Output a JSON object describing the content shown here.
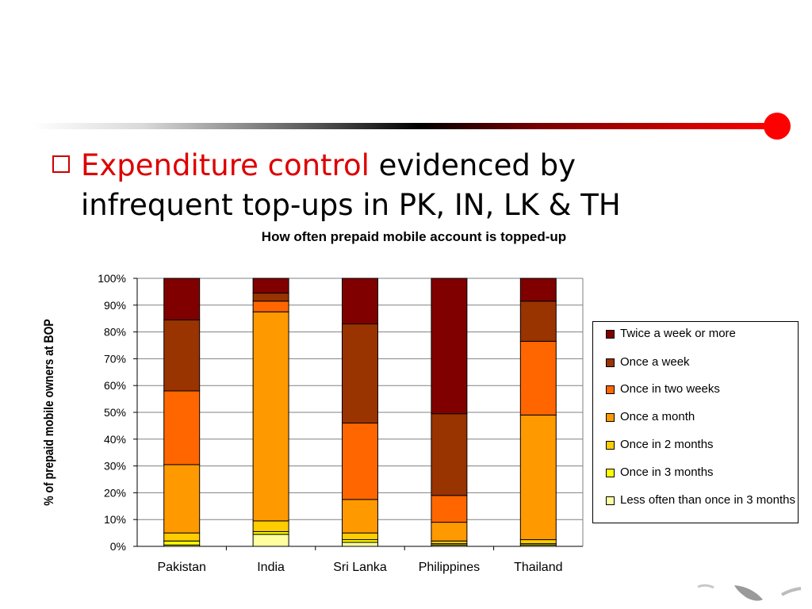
{
  "slide": {
    "bullet_highlight": "Expenditure control",
    "bullet_rest_line1": " evidenced by",
    "bullet_line2": "infrequent top-ups in PK, IN, LK & TH",
    "accent_color": "#ff0000",
    "bullet_icon": "hollow-square-bullet"
  },
  "chart_data": {
    "type": "bar",
    "stacked": true,
    "title": "How often prepaid mobile account is topped-up",
    "xlabel": "",
    "ylabel": "% of prepaid mobile owners at BOP",
    "categories": [
      "Pakistan",
      "India",
      "Sri Lanka",
      "Philippines",
      "Thailand"
    ],
    "ylim": [
      0,
      100
    ],
    "yticks": [
      "0%",
      "10%",
      "20%",
      "30%",
      "40%",
      "50%",
      "60%",
      "70%",
      "80%",
      "90%",
      "100%"
    ],
    "grid": true,
    "legend_position": "right",
    "series": [
      {
        "name": "Less often than once in 3 months",
        "color": "#ffffa0",
        "values": [
          0.5,
          4.5,
          1.5,
          0.5,
          0.5
        ]
      },
      {
        "name": "Once in 3 months",
        "color": "#ffff00",
        "values": [
          1.5,
          1.0,
          1.0,
          0.5,
          0.5
        ]
      },
      {
        "name": "Once in 2 months",
        "color": "#ffcc00",
        "values": [
          3.0,
          4.0,
          2.5,
          1.0,
          1.5
        ]
      },
      {
        "name": "Once a month",
        "color": "#ff9900",
        "values": [
          25.5,
          78.0,
          12.5,
          7.0,
          46.5
        ]
      },
      {
        "name": "Once in two weeks",
        "color": "#ff6600",
        "values": [
          27.5,
          4.0,
          28.5,
          10.0,
          27.5
        ]
      },
      {
        "name": "Once a week",
        "color": "#993300",
        "values": [
          26.5,
          3.0,
          37.0,
          30.5,
          15.0
        ]
      },
      {
        "name": "Twice a week or more",
        "color": "#800000",
        "values": [
          15.5,
          5.5,
          17.0,
          50.5,
          8.5
        ]
      }
    ]
  }
}
